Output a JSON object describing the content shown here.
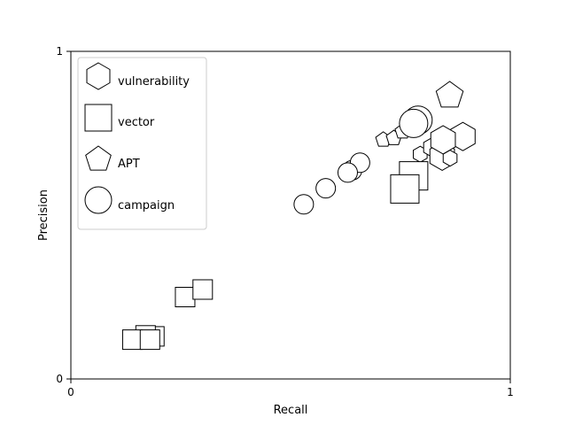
{
  "chart_data": {
    "type": "scatter",
    "title": "",
    "xlabel": "Recall",
    "ylabel": "Precision",
    "xlim": [
      0,
      1
    ],
    "ylim": [
      0,
      1
    ],
    "x_ticks": [
      "0",
      "1"
    ],
    "y_ticks": [
      "0",
      "1"
    ],
    "grid": false,
    "legend_position": "top-left",
    "series": [
      {
        "name": "vulnerability",
        "marker": "hexagon",
        "points": [
          {
            "x": 0.795,
            "y": 0.686,
            "size": "small"
          },
          {
            "x": 0.822,
            "y": 0.707,
            "size": "medium"
          },
          {
            "x": 0.845,
            "y": 0.68,
            "size": "large"
          },
          {
            "x": 0.863,
            "y": 0.674,
            "size": "small"
          },
          {
            "x": 0.892,
            "y": 0.74,
            "size": "large"
          },
          {
            "x": 0.847,
            "y": 0.73,
            "size": "large"
          }
        ]
      },
      {
        "name": "vector",
        "marker": "square",
        "points": [
          {
            "x": 0.19,
            "y": 0.13,
            "size": "medium"
          },
          {
            "x": 0.17,
            "y": 0.133,
            "size": "medium"
          },
          {
            "x": 0.14,
            "y": 0.12,
            "size": "medium"
          },
          {
            "x": 0.18,
            "y": 0.12,
            "size": "medium"
          },
          {
            "x": 0.26,
            "y": 0.25,
            "size": "medium"
          },
          {
            "x": 0.3,
            "y": 0.273,
            "size": "medium"
          },
          {
            "x": 0.78,
            "y": 0.62,
            "size": "large"
          },
          {
            "x": 0.76,
            "y": 0.58,
            "size": "large"
          }
        ]
      },
      {
        "name": "APT",
        "marker": "pentagon",
        "points": [
          {
            "x": 0.711,
            "y": 0.73,
            "size": "small"
          },
          {
            "x": 0.735,
            "y": 0.735,
            "size": "small"
          },
          {
            "x": 0.755,
            "y": 0.755,
            "size": "small"
          },
          {
            "x": 0.862,
            "y": 0.865,
            "size": "large"
          }
        ]
      },
      {
        "name": "campaign",
        "marker": "circle",
        "points": [
          {
            "x": 0.53,
            "y": 0.533,
            "size": "medium"
          },
          {
            "x": 0.58,
            "y": 0.582,
            "size": "medium"
          },
          {
            "x": 0.64,
            "y": 0.637,
            "size": "medium"
          },
          {
            "x": 0.658,
            "y": 0.66,
            "size": "medium"
          },
          {
            "x": 0.63,
            "y": 0.63,
            "size": "medium"
          },
          {
            "x": 0.79,
            "y": 0.79,
            "size": "large"
          },
          {
            "x": 0.78,
            "y": 0.78,
            "size": "large"
          }
        ]
      }
    ]
  }
}
